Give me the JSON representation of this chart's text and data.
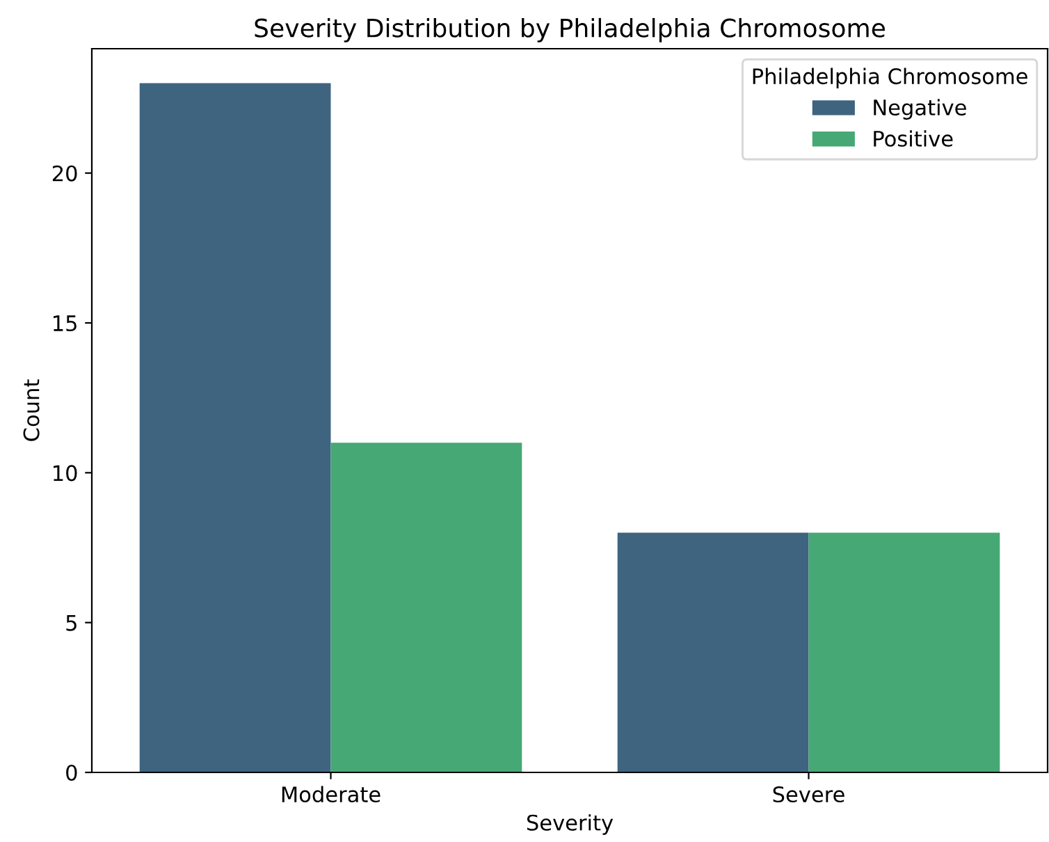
{
  "chart_data": {
    "type": "bar",
    "title": "Severity Distribution by Philadelphia Chromosome",
    "xlabel": "Severity",
    "ylabel": "Count",
    "legend_title": "Philadelphia Chromosome",
    "categories": [
      "Moderate",
      "Severe"
    ],
    "series": [
      {
        "name": "Negative",
        "color": "#3e6480",
        "values": [
          23,
          8
        ]
      },
      {
        "name": "Positive",
        "color": "#46a874",
        "values": [
          11,
          8
        ]
      }
    ],
    "ylim": [
      0,
      24.15
    ],
    "yticks": [
      0,
      5,
      10,
      15,
      20
    ],
    "grid": false,
    "legend": "top right"
  }
}
